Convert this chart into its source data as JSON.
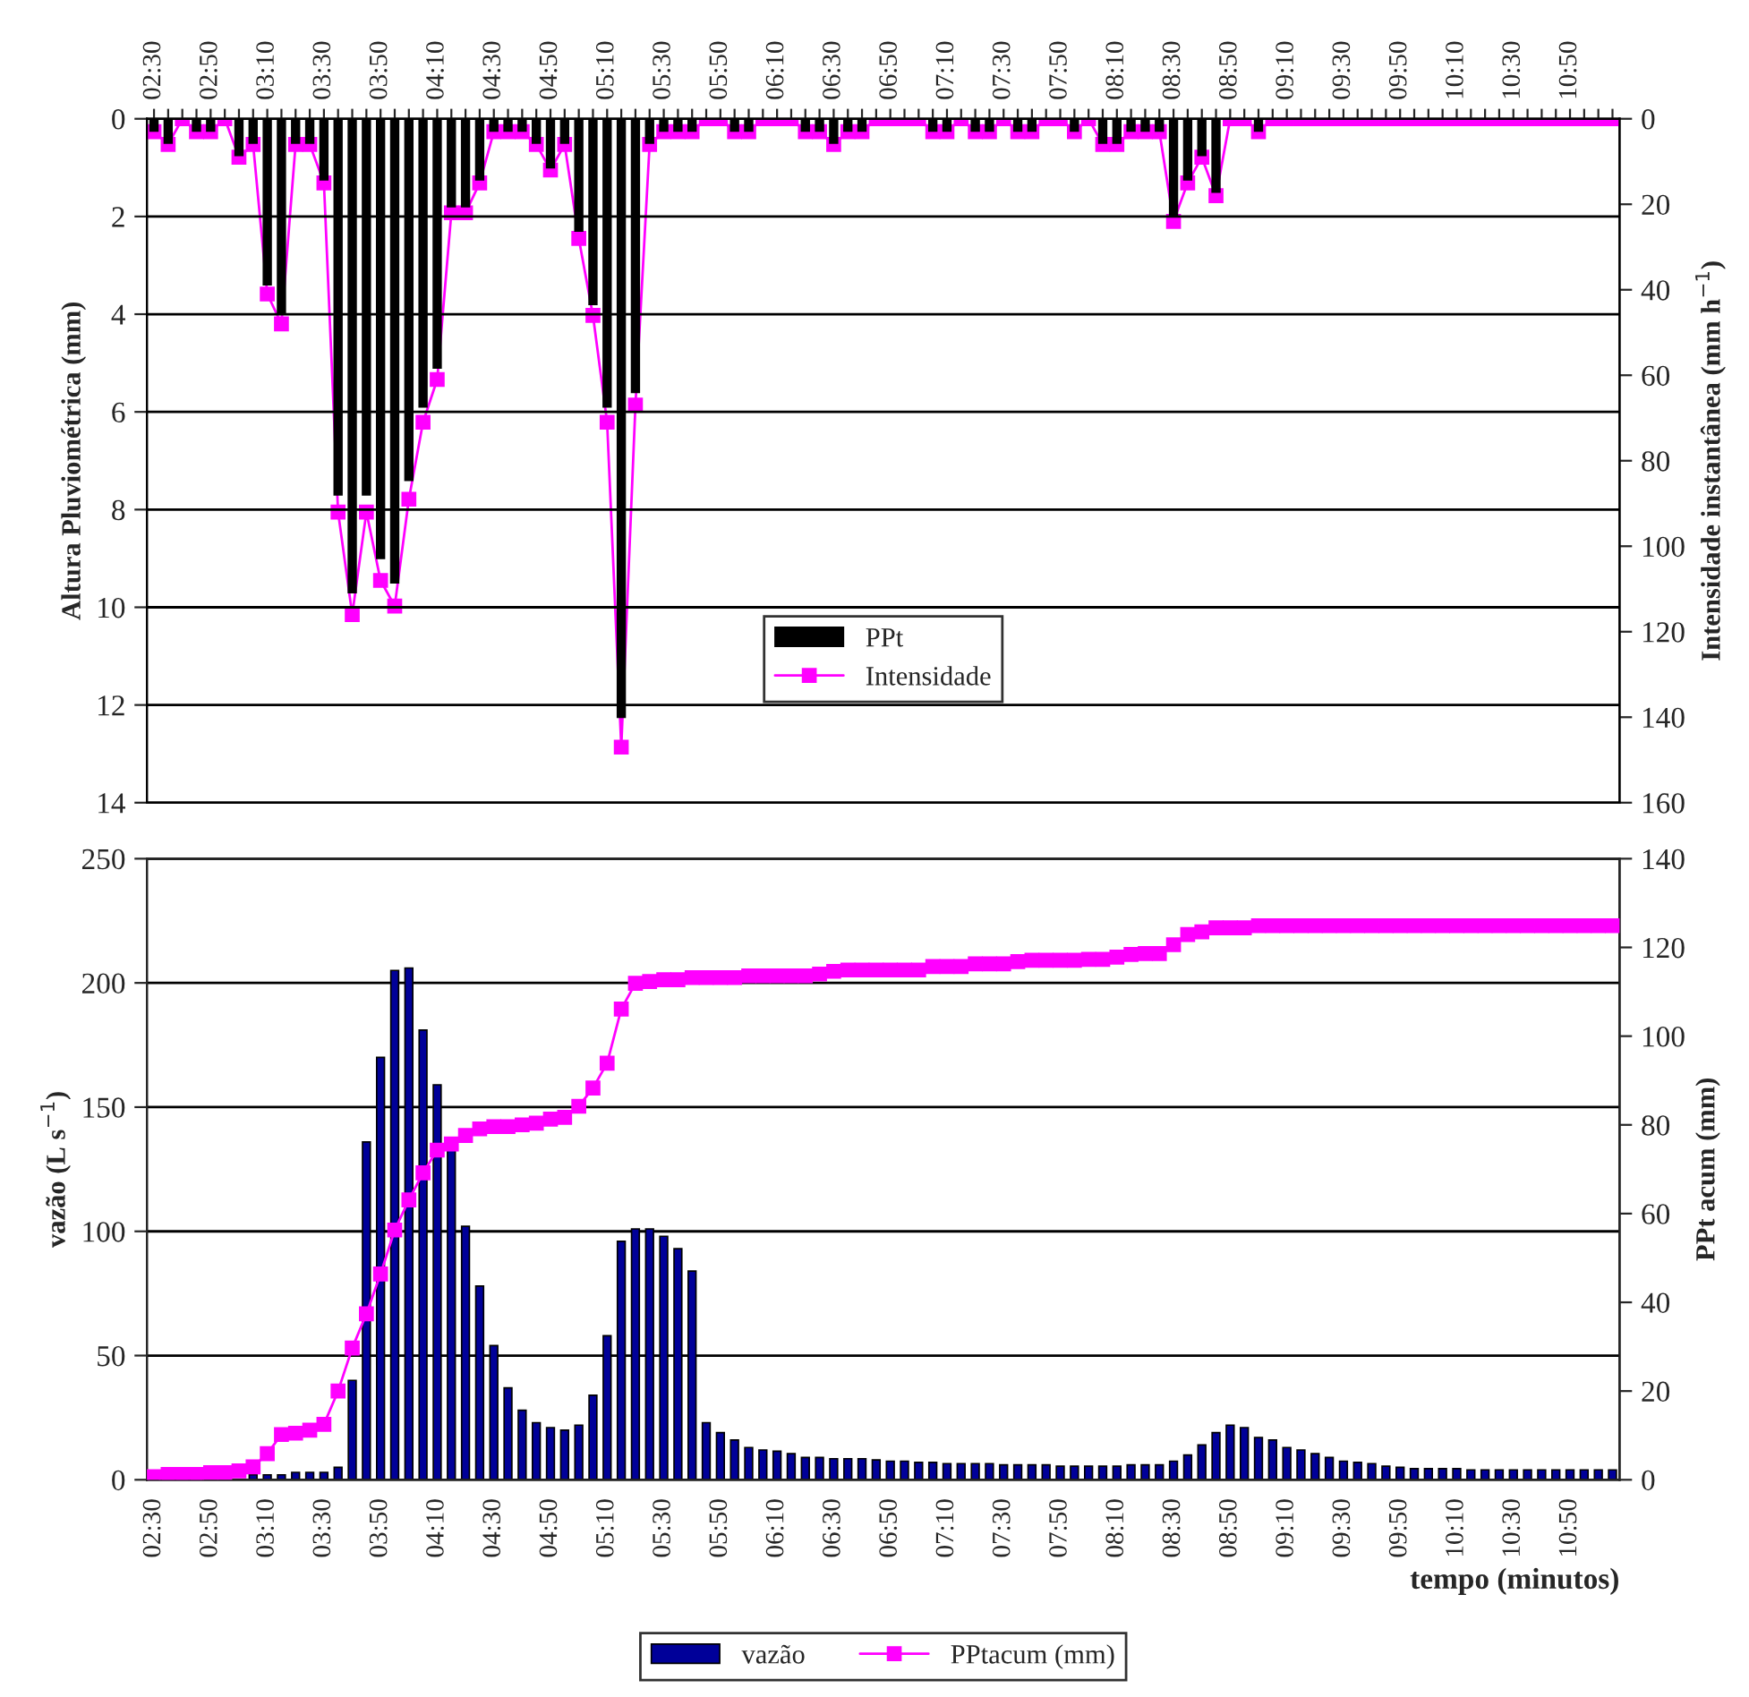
{
  "chart_data": [
    {
      "type": "bar",
      "ylabel": "Altura Pluviométrica (mm)",
      "y2label": "Intensidade instantânea (mm h$^{−1}$)",
      "categories": [
        "02:30",
        null,
        null,
        null,
        "02:50",
        null,
        null,
        null,
        "03:10",
        null,
        null,
        null,
        "03:30",
        null,
        null,
        null,
        "03:50",
        null,
        null,
        null,
        "04:10",
        null,
        null,
        null,
        "04:30",
        null,
        null,
        null,
        "04:50",
        null,
        null,
        null,
        "05:10",
        null,
        null,
        null,
        "05:30",
        null,
        null,
        null,
        "05:50",
        null,
        null,
        null,
        "06:10",
        null,
        null,
        null,
        "06:30",
        null,
        null,
        null,
        "06:50",
        null,
        null,
        null,
        "07:10",
        null,
        null,
        null,
        "07:30",
        null,
        null,
        null,
        "07:50",
        null,
        null,
        null,
        "08:10",
        null,
        null,
        null,
        "08:30",
        null,
        null,
        null,
        "08:50",
        null,
        null,
        null,
        "09:10",
        null,
        null,
        null,
        "09:30",
        null,
        null,
        null,
        "09:50",
        null,
        null,
        null,
        "10:10",
        null,
        null,
        null,
        "10:30",
        null,
        null,
        null,
        "10:50",
        null,
        null,
        null
      ],
      "series": [
        {
          "name": "PPt",
          "color": "#000000",
          "values": [
            0.25,
            0.5,
            0,
            0.25,
            0.25,
            0,
            0.75,
            0.5,
            3.4,
            4.0,
            0.5,
            0.5,
            1.25,
            7.7,
            9.7,
            7.7,
            9.0,
            9.5,
            7.4,
            5.9,
            5.1,
            1.8,
            1.8,
            1.25,
            0.25,
            0.25,
            0.25,
            0.5,
            1.0,
            0.5,
            2.3,
            3.8,
            5.9,
            12.25,
            5.6,
            0.5,
            0.25,
            0.25,
            0.25,
            0,
            0,
            0.25,
            0.25,
            0,
            0,
            0,
            0.25,
            0.25,
            0.5,
            0.25,
            0.25,
            0,
            0,
            0,
            0,
            0.25,
            0.25,
            0,
            0.25,
            0.25,
            0,
            0.25,
            0.25,
            0,
            0,
            0.25,
            0,
            0.5,
            0.5,
            0.25,
            0.25,
            0.25,
            2.0,
            1.25,
            0.75,
            1.5,
            0,
            0,
            0.25,
            0,
            0,
            0,
            0,
            0,
            0,
            0,
            0,
            0,
            0,
            0,
            0,
            0,
            0,
            0,
            0,
            0,
            0,
            0,
            0,
            0,
            0,
            0,
            0,
            0
          ]
        },
        {
          "name": "Intensidade",
          "type": "line",
          "axis": "y2",
          "color": "#ff00ff",
          "values": [
            3,
            6,
            0,
            3,
            3,
            0,
            9,
            6,
            41,
            48,
            6,
            6,
            15,
            92,
            116,
            92,
            108,
            114,
            89,
            71,
            61,
            22,
            22,
            15,
            3,
            3,
            3,
            6,
            12,
            6,
            28,
            46,
            71,
            147,
            67,
            6,
            3,
            3,
            3,
            0,
            0,
            3,
            3,
            0,
            0,
            0,
            3,
            3,
            6,
            3,
            3,
            0,
            0,
            0,
            0,
            3,
            3,
            0,
            3,
            3,
            0,
            3,
            3,
            0,
            0,
            3,
            0,
            6,
            6,
            3,
            3,
            3,
            24,
            15,
            9,
            18,
            0,
            0,
            3,
            0,
            0,
            0,
            0,
            0,
            0,
            0,
            0,
            0,
            0,
            0,
            0,
            0,
            0,
            0,
            0,
            0,
            0,
            0,
            0,
            0,
            0,
            0,
            0,
            0
          ]
        }
      ],
      "ylim": [
        14,
        0
      ],
      "yticks": [
        0,
        2,
        4,
        6,
        8,
        10,
        12,
        14
      ],
      "y2lim": [
        160,
        0
      ],
      "y2ticks": [
        0,
        20,
        40,
        60,
        80,
        100,
        120,
        140,
        160
      ],
      "grid": "y",
      "legend": "center",
      "marker": "square",
      "line_style": "solid"
    },
    {
      "type": "bar",
      "xlabel": "tempo (minutos)",
      "ylabel": "vazão (L s$^{−1}$)",
      "y2label": "PPt acum (mm)",
      "categories": [
        "02:30",
        null,
        null,
        null,
        "02:50",
        null,
        null,
        null,
        "03:10",
        null,
        null,
        null,
        "03:30",
        null,
        null,
        null,
        "03:50",
        null,
        null,
        null,
        "04:10",
        null,
        null,
        null,
        "04:30",
        null,
        null,
        null,
        "04:50",
        null,
        null,
        null,
        "05:10",
        null,
        null,
        null,
        "05:30",
        null,
        null,
        null,
        "05:50",
        null,
        null,
        null,
        "06:10",
        null,
        null,
        null,
        "06:30",
        null,
        null,
        null,
        "06:50",
        null,
        null,
        null,
        "07:10",
        null,
        null,
        null,
        "07:30",
        null,
        null,
        null,
        "07:50",
        null,
        null,
        null,
        "08:10",
        null,
        null,
        null,
        "08:30",
        null,
        null,
        null,
        "08:50",
        null,
        null,
        null,
        "09:10",
        null,
        null,
        null,
        "09:30",
        null,
        null,
        null,
        "09:50",
        null,
        null,
        null,
        "10:10",
        null,
        null,
        null,
        "10:30",
        null,
        null,
        null,
        "10:50",
        null,
        null,
        null
      ],
      "series": [
        {
          "name": "vazão",
          "color": "#000099",
          "values": [
            1,
            1,
            1,
            1,
            1,
            1,
            null,
            2,
            2,
            2,
            3,
            3,
            3,
            5,
            40,
            136,
            170,
            205,
            206,
            181,
            159,
            133,
            102,
            78,
            54,
            37,
            28,
            23,
            21,
            20,
            22,
            34,
            58,
            96,
            101,
            101,
            98,
            93,
            84,
            23,
            19,
            16,
            13,
            12,
            11.5,
            10.5,
            9,
            9,
            8.5,
            8.5,
            8.5,
            8,
            7.5,
            7.5,
            7,
            7,
            6.5,
            6.5,
            6.5,
            6.5,
            6,
            6,
            6,
            6,
            5.5,
            5.5,
            5.5,
            5.5,
            5.5,
            6,
            6,
            6,
            7.5,
            10,
            14,
            19,
            22,
            21,
            17,
            16,
            13,
            12,
            10.5,
            9,
            7.5,
            7,
            6.5,
            5.5,
            5,
            4.5,
            4.5,
            4.5,
            4.5,
            4,
            4,
            4,
            4,
            4,
            4,
            4,
            4,
            4,
            4,
            4
          ]
        },
        {
          "name": "PPtacum (mm)",
          "type": "line",
          "axis": "y2",
          "color": "#ff00ff",
          "values": [
            0.7,
            1.2,
            1.2,
            1.2,
            1.6,
            1.6,
            2,
            2.9,
            5.9,
            10.2,
            10.5,
            11.2,
            12.5,
            20,
            29.7,
            37.4,
            46.4,
            56.3,
            63.1,
            69.2,
            74.3,
            75.7,
            77.6,
            79.1,
            79.6,
            79.6,
            80,
            80.4,
            81.3,
            81.7,
            84.2,
            88.3,
            93.9,
            106.1,
            111.9,
            112.3,
            112.7,
            112.7,
            113.2,
            113.2,
            113.2,
            113.2,
            113.6,
            113.6,
            113.6,
            113.6,
            113.6,
            114,
            114.6,
            114.9,
            114.9,
            114.9,
            114.9,
            114.9,
            114.9,
            115.7,
            115.7,
            115.7,
            116.3,
            116.3,
            116.3,
            116.8,
            117.1,
            117.1,
            117.1,
            117.1,
            117.3,
            117.3,
            117.8,
            118.4,
            118.6,
            118.6,
            120.6,
            122.9,
            123.5,
            124.4,
            124.4,
            124.4,
            124.9,
            124.9,
            124.9,
            124.9,
            124.9,
            124.9,
            124.9,
            124.9,
            124.9,
            124.9,
            124.9,
            124.9,
            124.9,
            124.9,
            124.9,
            124.9,
            124.9,
            124.9,
            124.9,
            124.9,
            124.9,
            124.9,
            124.9,
            124.9,
            124.9,
            124.9
          ]
        }
      ],
      "ylim": [
        0,
        250
      ],
      "yticks": [
        0,
        50,
        100,
        150,
        200,
        250
      ],
      "y2lim": [
        0,
        140
      ],
      "y2ticks": [
        0,
        20,
        40,
        60,
        80,
        100,
        120,
        140
      ],
      "grid": "y",
      "legend": "bottom",
      "marker": "square",
      "line_style": "solid"
    }
  ]
}
